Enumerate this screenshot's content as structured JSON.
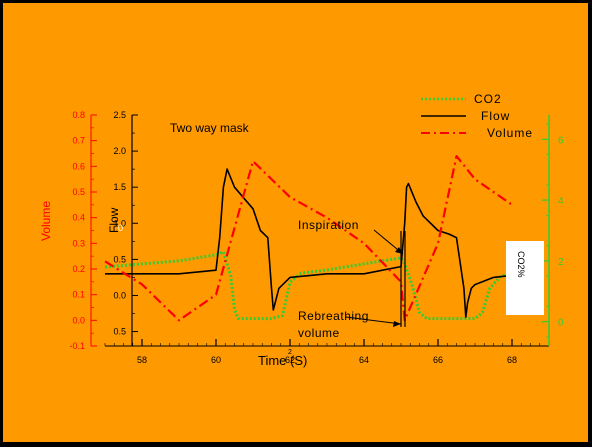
{
  "colors": {
    "background": "#FF9900",
    "border": "#000000",
    "volume": "#FF0000",
    "flow": "#000000",
    "co2": "#33CC33"
  },
  "chart_data": {
    "type": "line",
    "title": "",
    "annotation_title": "Two way mask",
    "annotations": [
      "Inspiration",
      "Rebreathing",
      "volume"
    ],
    "xlabel": "Time (S)",
    "xlabel_subscript": "2",
    "xlim": [
      57,
      69
    ],
    "x_ticks": [
      "58",
      "60",
      "62",
      "64",
      "66",
      "68"
    ],
    "axes": {
      "volume": {
        "label": "Volume",
        "ylim": [
          -0.1,
          0.8
        ],
        "ticks": [
          "0.8",
          "0.7",
          "0.6",
          "0.5",
          "0.4",
          "0.3",
          "0.2",
          "0.1",
          "0.0",
          "-0.1"
        ]
      },
      "flow": {
        "label": "Flow",
        "label_suffix": "0",
        "ylim": [
          -0.7,
          2.5
        ],
        "ticks": [
          "2.5",
          "2.0",
          "1.5",
          "1.0",
          "0.5",
          "0.0",
          "0.5"
        ]
      },
      "co2": {
        "label": "CO2%",
        "ylim": [
          -0.8,
          6.8
        ],
        "ticks": [
          "6",
          "4",
          "2",
          "0"
        ]
      }
    },
    "legend": {
      "position": "top-right",
      "entries": [
        "CO2",
        "Flow",
        "Volume"
      ]
    },
    "series": [
      {
        "name": "CO2",
        "axis": "co2",
        "x": [
          57.0,
          58.0,
          59.0,
          60.0,
          60.2,
          60.4,
          60.5,
          60.6,
          61.0,
          61.5,
          61.8,
          62.0,
          62.3,
          63.0,
          64.0,
          64.5,
          65.0,
          65.1,
          65.3,
          65.5,
          65.7,
          66.0,
          66.5,
          67.0,
          67.2,
          67.4,
          67.7,
          68.0
        ],
        "y": [
          1.8,
          1.9,
          2.0,
          2.2,
          2.3,
          1.5,
          0.4,
          0.1,
          0.1,
          0.1,
          0.2,
          1.3,
          1.6,
          1.7,
          1.9,
          2.0,
          2.1,
          1.9,
          1.2,
          0.3,
          0.1,
          0.1,
          0.1,
          0.1,
          0.3,
          1.1,
          1.5,
          1.6
        ]
      },
      {
        "name": "Flow",
        "axis": "flow",
        "x": [
          57.0,
          58.0,
          59.0,
          60.0,
          60.1,
          60.2,
          60.3,
          60.5,
          61.0,
          61.2,
          61.4,
          61.5,
          61.55,
          61.6,
          61.7,
          62.0,
          63.0,
          64.0,
          65.0,
          65.1,
          65.15,
          65.2,
          65.4,
          65.6,
          66.0,
          66.3,
          66.5,
          66.7,
          66.75,
          66.8,
          66.9,
          67.0,
          67.5,
          68.0
        ],
        "y": [
          0.3,
          0.3,
          0.3,
          0.35,
          0.8,
          1.5,
          1.75,
          1.5,
          1.2,
          0.9,
          0.8,
          0.1,
          -0.2,
          -0.1,
          0.1,
          0.25,
          0.3,
          0.3,
          0.4,
          1.0,
          1.5,
          1.55,
          1.3,
          1.1,
          0.9,
          0.85,
          0.8,
          0.1,
          -0.3,
          -0.1,
          0.1,
          0.15,
          0.25,
          0.28
        ]
      },
      {
        "name": "Volume",
        "axis": "volume",
        "x": [
          57.0,
          58.0,
          59.0,
          60.0,
          61.0,
          62.0,
          63.0,
          64.0,
          65.0,
          65.1,
          66.0,
          66.5,
          67.0,
          68.0
        ],
        "y": [
          0.23,
          0.14,
          0.0,
          0.1,
          0.62,
          0.48,
          0.4,
          0.3,
          0.15,
          0.0,
          0.3,
          0.64,
          0.55,
          0.45
        ]
      }
    ]
  }
}
